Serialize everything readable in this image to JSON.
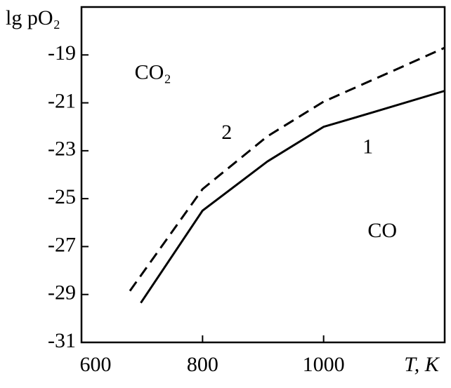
{
  "chart_data": {
    "type": "line",
    "y_label": "lg pO₂",
    "x_label": "T, K",
    "xlim": [
      600,
      1200
    ],
    "xticks": [
      600,
      800,
      1000
    ],
    "ylim": [
      -31,
      -17
    ],
    "yticks": [
      -19,
      -21,
      -23,
      -25,
      -27,
      -29,
      -31
    ],
    "series": [
      {
        "name": "1",
        "color": "#000000",
        "dash": false,
        "x": [
          698,
          800,
          907,
          1000,
          1081,
          1200
        ],
        "values": [
          -29.35,
          -25.5,
          -23.45,
          -22.0,
          -21.4,
          -20.5
        ]
      },
      {
        "name": "2",
        "color": "#000000",
        "dash": true,
        "x": [
          680,
          800,
          907,
          1000,
          1116,
          1200
        ],
        "values": [
          -28.85,
          -24.6,
          -22.4,
          -20.95,
          -19.65,
          -18.7
        ]
      }
    ],
    "annotations": [
      {
        "text": "CO₂",
        "x": 718,
        "y": -19.8
      },
      {
        "text": "2",
        "x": 840,
        "y": -22.3
      },
      {
        "text": "1",
        "x": 1073,
        "y": -22.9
      },
      {
        "text": "CO",
        "x": 1097,
        "y": -26.4
      }
    ]
  }
}
